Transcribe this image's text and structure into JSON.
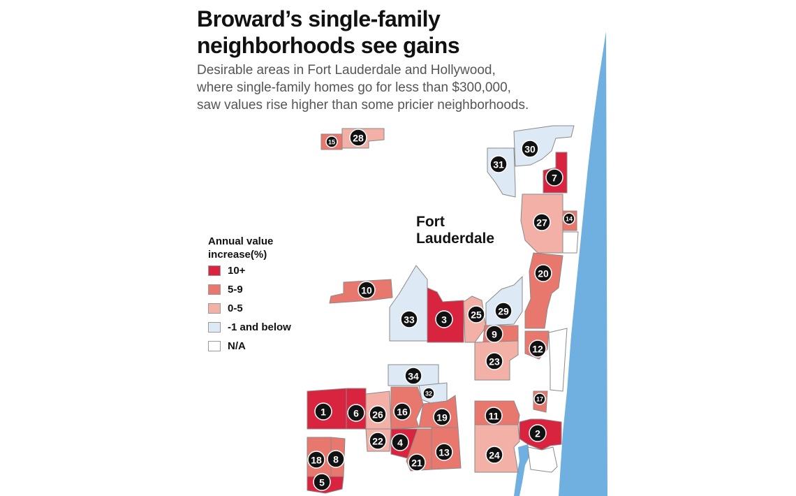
{
  "title": "Broward’s single-family neighborhoods see gains",
  "subtitle": "Desirable areas in Fort Lauderdale and Hollywood, where single-family homes go for less than $300,000, saw values rise higher than some pricier neighborhoods.",
  "city_label": "Fort Lauderdale",
  "legend": {
    "title": "Annual value increase(%)",
    "items": [
      {
        "label": "10+",
        "color": "#d9243f"
      },
      {
        "label": "5-9",
        "color": "#e8776d"
      },
      {
        "label": "0-5",
        "color": "#f2b0a6"
      },
      {
        "label": "-1 and below",
        "color": "#dde9f4"
      },
      {
        "label": "N/A",
        "color": "#ffffff"
      }
    ]
  },
  "colors": {
    "ocean": "#6fb0e0",
    "border": "#8a8a8a",
    "marker": "#111111"
  },
  "neighborhoods": [
    {
      "id": "1",
      "category": "10+"
    },
    {
      "id": "2",
      "category": "10+"
    },
    {
      "id": "3",
      "category": "10+"
    },
    {
      "id": "4",
      "category": "10+"
    },
    {
      "id": "5",
      "category": "10+"
    },
    {
      "id": "6",
      "category": "10+"
    },
    {
      "id": "7",
      "category": "10+"
    },
    {
      "id": "8",
      "category": "5-9"
    },
    {
      "id": "9",
      "category": "5-9"
    },
    {
      "id": "10",
      "category": "5-9"
    },
    {
      "id": "11",
      "category": "5-9"
    },
    {
      "id": "12",
      "category": "5-9"
    },
    {
      "id": "13",
      "category": "5-9"
    },
    {
      "id": "14",
      "category": "5-9"
    },
    {
      "id": "15",
      "category": "5-9"
    },
    {
      "id": "16",
      "category": "5-9"
    },
    {
      "id": "17",
      "category": "5-9"
    },
    {
      "id": "18",
      "category": "5-9"
    },
    {
      "id": "19",
      "category": "5-9"
    },
    {
      "id": "20",
      "category": "5-9"
    },
    {
      "id": "21",
      "category": "5-9"
    },
    {
      "id": "22",
      "category": "0-5"
    },
    {
      "id": "23",
      "category": "0-5"
    },
    {
      "id": "24",
      "category": "0-5"
    },
    {
      "id": "25",
      "category": "0-5"
    },
    {
      "id": "26",
      "category": "0-5"
    },
    {
      "id": "27",
      "category": "0-5"
    },
    {
      "id": "28",
      "category": "0-5"
    },
    {
      "id": "29",
      "category": "-1 and below"
    },
    {
      "id": "30",
      "category": "-1 and below"
    },
    {
      "id": "31",
      "category": "-1 and below"
    },
    {
      "id": "32",
      "category": "-1 and below"
    },
    {
      "id": "33",
      "category": "-1 and below"
    },
    {
      "id": "34",
      "category": "-1 and below"
    }
  ]
}
